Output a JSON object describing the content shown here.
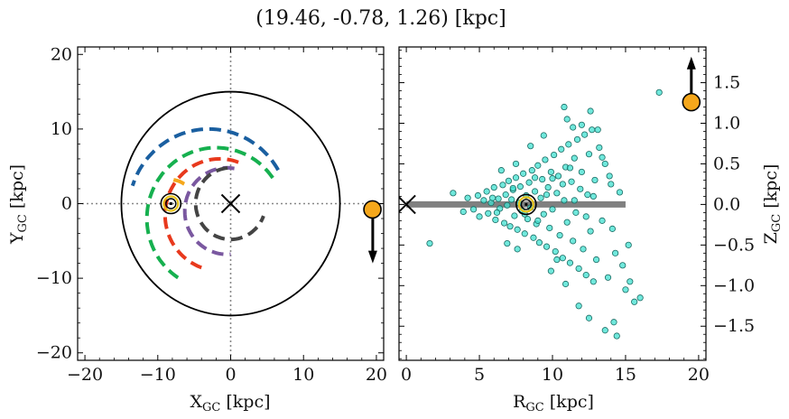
{
  "title": "(19.46, -0.78, 1.26) [kpc]",
  "chart_data": [
    {
      "type": "scatter",
      "panel": "left",
      "xlabel": "X_GC [kpc]",
      "xlabel_main": "X",
      "xlabel_sub": "GC",
      "xlabel_unit": " [kpc]",
      "ylabel": "Y_GC [kpc]",
      "ylabel_main": "Y",
      "ylabel_sub": "GC",
      "ylabel_unit": " [kpc]",
      "xlim": [
        -21,
        21
      ],
      "ylim": [
        -21,
        21
      ],
      "xticks": [
        -20,
        -10,
        0,
        10,
        20
      ],
      "yticks": [
        -20,
        -10,
        0,
        10,
        20
      ],
      "xtick_labels": [
        "−20",
        "−10",
        "0",
        "10",
        "20"
      ],
      "ytick_labels": [
        "−20",
        "−10",
        "0",
        "10",
        "20"
      ],
      "circle_radius": 15,
      "crosshair_lines": "dotted grey at x=0 and y=0",
      "galactic_center": {
        "x": 0,
        "y": 0
      },
      "sun": {
        "x": -8.2,
        "y": 0
      },
      "target": {
        "x": 19.46,
        "y": -0.78,
        "color": "#f5a71b"
      },
      "arrow": {
        "from": [
          19.5,
          -1
        ],
        "to": [
          19.5,
          -8
        ]
      },
      "arms": [
        {
          "color": "#1a5fa0",
          "center": [
            -3,
            -1
          ],
          "radius": 11,
          "angle_start_deg": 30,
          "angle_end_deg": 162
        },
        {
          "color": "#16b04f",
          "center": [
            -2,
            -2
          ],
          "radius": 9.5,
          "angle_start_deg": 35,
          "angle_end_deg": 240
        },
        {
          "color": "#f5a71b",
          "center": [
            -8.2,
            0
          ],
          "radius": 3.2,
          "angle_start_deg": 55,
          "angle_end_deg": 95
        },
        {
          "color": "#e8391d",
          "center": [
            -1.5,
            -1.5
          ],
          "radius": 7.5,
          "angle_start_deg": 70,
          "angle_end_deg": 255
        },
        {
          "color": "#7a58a0",
          "center": [
            -0.5,
            -1
          ],
          "radius": 5.8,
          "angle_start_deg": 80,
          "angle_end_deg": 275
        },
        {
          "color": "#444444",
          "center": [
            0,
            0
          ],
          "radius": 4.8,
          "angle_start_deg": 95,
          "angle_end_deg": 340
        }
      ]
    },
    {
      "type": "scatter",
      "panel": "right",
      "xlabel": "R_GC [kpc]",
      "xlabel_main": "R",
      "xlabel_sub": "GC",
      "xlabel_unit": " [kpc]",
      "ylabel": "Z_GC [kpc]",
      "ylabel_main": "Z",
      "ylabel_sub": "GC",
      "ylabel_unit": " [kpc]",
      "xlim": [
        -0.5,
        20.5
      ],
      "ylim": [
        -1.92,
        1.94
      ],
      "xticks": [
        0,
        5,
        10,
        15,
        20
      ],
      "yticks": [
        -1.5,
        -1.0,
        -0.5,
        0.0,
        0.5,
        1.0,
        1.5
      ],
      "xtick_labels": [
        "0",
        "5",
        "10",
        "15",
        "20"
      ],
      "ytick_labels": [
        "−1.5",
        "−1.0",
        "−0.5",
        "0.0",
        "0.5",
        "1.0",
        "1.5"
      ],
      "disk_band": {
        "x": [
          0,
          15
        ],
        "y": 0,
        "color": "#808080"
      },
      "galactic_center": {
        "x": 0,
        "y": 0
      },
      "sun": {
        "x": 8.2,
        "y": 0
      },
      "target": {
        "x": 19.5,
        "y": 1.26,
        "color": "#f5a71b"
      },
      "arrow": {
        "from": [
          19.5,
          1.32
        ],
        "to": [
          19.5,
          1.82
        ]
      },
      "points_color": "#40e0d0",
      "points": [
        [
          1.6,
          -0.48
        ],
        [
          3.2,
          0.14
        ],
        [
          3.9,
          -0.09
        ],
        [
          4.2,
          0.08
        ],
        [
          4.6,
          -0.06
        ],
        [
          4.9,
          0.11
        ],
        [
          5.0,
          -0.15
        ],
        [
          5.3,
          0.05
        ],
        [
          5.5,
          0.16
        ],
        [
          5.6,
          -0.11
        ],
        [
          5.8,
          0.02
        ],
        [
          6.0,
          0.21
        ],
        [
          6.1,
          -0.19
        ],
        [
          6.3,
          0.07
        ],
        [
          6.4,
          -0.05
        ],
        [
          6.6,
          0.24
        ],
        [
          6.7,
          -0.23
        ],
        [
          6.8,
          0.12
        ],
        [
          6.9,
          -0.01
        ],
        [
          7.0,
          0.29
        ],
        [
          7.1,
          -0.27
        ],
        [
          7.2,
          0.06
        ],
        [
          7.3,
          0.18
        ],
        [
          7.4,
          -0.14
        ],
        [
          7.5,
          0.33
        ],
        [
          7.6,
          -0.31
        ],
        [
          7.7,
          0.02
        ],
        [
          7.8,
          0.22
        ],
        [
          7.9,
          -0.08
        ],
        [
          8.0,
          0.38
        ],
        [
          8.1,
          -0.36
        ],
        [
          8.2,
          0.11
        ],
        [
          8.3,
          -0.18
        ],
        [
          8.4,
          0.27
        ],
        [
          8.5,
          -0.04
        ],
        [
          8.6,
          0.42
        ],
        [
          8.7,
          -0.41
        ],
        [
          8.8,
          0.16
        ],
        [
          8.9,
          -0.24
        ],
        [
          9.0,
          0.48
        ],
        [
          9.1,
          -0.47
        ],
        [
          9.2,
          0.08
        ],
        [
          9.3,
          0.31
        ],
        [
          9.4,
          -0.12
        ],
        [
          9.5,
          0.55
        ],
        [
          9.6,
          -0.52
        ],
        [
          9.7,
          0.21
        ],
        [
          9.8,
          -0.29
        ],
        [
          9.9,
          0.4
        ],
        [
          10.0,
          -0.06
        ],
        [
          10.1,
          0.61
        ],
        [
          10.2,
          -0.58
        ],
        [
          10.3,
          0.14
        ],
        [
          10.4,
          0.35
        ],
        [
          10.5,
          -0.38
        ],
        [
          10.6,
          0.68
        ],
        [
          10.7,
          -0.66
        ],
        [
          10.8,
          0.05
        ],
        [
          10.9,
          0.46
        ],
        [
          11.0,
          -0.22
        ],
        [
          11.1,
          0.74
        ],
        [
          11.2,
          -0.72
        ],
        [
          11.3,
          0.28
        ],
        [
          11.4,
          -0.45
        ],
        [
          11.5,
          0.57
        ],
        [
          11.6,
          -0.1
        ],
        [
          11.7,
          0.8
        ],
        [
          11.8,
          -0.79
        ],
        [
          11.9,
          0.19
        ],
        [
          12.0,
          0.4
        ],
        [
          12.1,
          -0.55
        ],
        [
          12.2,
          0.86
        ],
        [
          12.3,
          -0.87
        ],
        [
          12.4,
          0.12
        ],
        [
          12.5,
          0.62
        ],
        [
          12.6,
          -0.33
        ],
        [
          12.7,
          0.92
        ],
        [
          12.8,
          -0.95
        ],
        [
          12.9,
          0.3
        ],
        [
          13.0,
          -0.68
        ],
        [
          13.2,
          0.7
        ],
        [
          13.4,
          -0.2
        ],
        [
          13.6,
          0.5
        ],
        [
          13.8,
          -0.9
        ],
        [
          14.0,
          0.25
        ],
        [
          14.3,
          -0.6
        ],
        [
          14.6,
          0.15
        ],
        [
          15.0,
          -1.05
        ],
        [
          15.3,
          -0.95
        ],
        [
          15.6,
          -1.2
        ],
        [
          16.0,
          -1.15
        ],
        [
          17.3,
          1.38
        ],
        [
          10.8,
          1.2
        ],
        [
          11.4,
          0.95
        ],
        [
          12.6,
          1.15
        ],
        [
          13.1,
          0.92
        ],
        [
          14.2,
          -1.45
        ],
        [
          14.4,
          -1.62
        ],
        [
          13.6,
          -1.55
        ],
        [
          11.8,
          -1.25
        ],
        [
          12.5,
          -1.4
        ],
        [
          10.9,
          -0.98
        ],
        [
          11.0,
          1.05
        ],
        [
          9.4,
          0.85
        ],
        [
          8.5,
          0.72
        ],
        [
          7.5,
          0.5
        ],
        [
          6.5,
          0.42
        ],
        [
          7.6,
          -0.55
        ],
        [
          6.9,
          -0.48
        ],
        [
          12.0,
          0.98
        ],
        [
          9.9,
          -0.82
        ],
        [
          10.3,
          -0.68
        ],
        [
          13.4,
          0.58
        ],
        [
          8.8,
          0.33
        ],
        [
          9.6,
          0.12
        ],
        [
          10.7,
          0.25
        ],
        [
          11.5,
          0.05
        ],
        [
          12.3,
          -0.15
        ],
        [
          8.1,
          -0.12
        ],
        [
          7.3,
          0.2
        ],
        [
          5.9,
          0.08
        ],
        [
          6.2,
          -0.1
        ],
        [
          9.0,
          -0.2
        ],
        [
          10.0,
          0.32
        ],
        [
          11.2,
          0.45
        ],
        [
          12.8,
          0.1
        ],
        [
          13.9,
          0.35
        ],
        [
          14.1,
          -0.3
        ],
        [
          14.8,
          -0.75
        ],
        [
          15.2,
          -0.5
        ]
      ]
    }
  ]
}
